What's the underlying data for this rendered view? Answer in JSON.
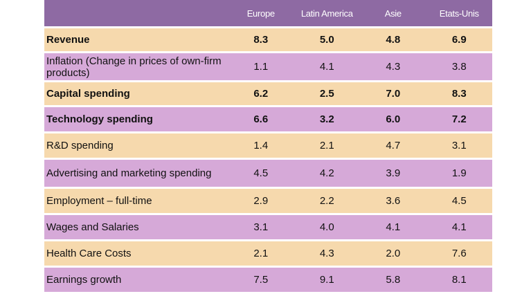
{
  "chart_data": {
    "type": "table",
    "columns": [
      "",
      "Europe",
      "Latin America",
      "Asie",
      "Etats-Unis"
    ],
    "rows": [
      {
        "label": "Revenue",
        "values": [
          "8.3",
          "5.0",
          "4.8",
          "6.9"
        ],
        "bold": true
      },
      {
        "label": "Inflation (Change in prices of own-firm products)",
        "values": [
          "1.1",
          "4.1",
          "4.3",
          "3.8"
        ],
        "bold": false
      },
      {
        "label": "Capital spending",
        "values": [
          "6.2",
          "2.5",
          "7.0",
          "8.3"
        ],
        "bold": true
      },
      {
        "label": "Technology spending",
        "values": [
          "6.6",
          "3.2",
          "6.0",
          "7.2"
        ],
        "bold": true
      },
      {
        "label": "R&D spending",
        "values": [
          "1.4",
          "2.1",
          "4.7",
          "3.1"
        ],
        "bold": false
      },
      {
        "label": "Advertising and marketing spending",
        "values": [
          "4.5",
          "4.2",
          "3.9",
          "1.9"
        ],
        "bold": false
      },
      {
        "label": "Employment – full-time",
        "values": [
          "2.9",
          "2.2",
          "3.6",
          "4.5"
        ],
        "bold": false
      },
      {
        "label": "Wages and Salaries",
        "values": [
          "3.1",
          "4.0",
          "4.1",
          "4.1"
        ],
        "bold": false
      },
      {
        "label": "Health Care Costs",
        "values": [
          "2.1",
          "4.3",
          "2.0",
          "7.6"
        ],
        "bold": false
      },
      {
        "label": "Earnings growth",
        "values": [
          "7.5",
          "9.1",
          "5.8",
          "8.1"
        ],
        "bold": false
      }
    ]
  },
  "colors": {
    "header_bg": "#8e6aa3",
    "header_text": "#ffffff",
    "row_peach": "#f6d9ad",
    "row_lilac": "#d6a9d8"
  }
}
